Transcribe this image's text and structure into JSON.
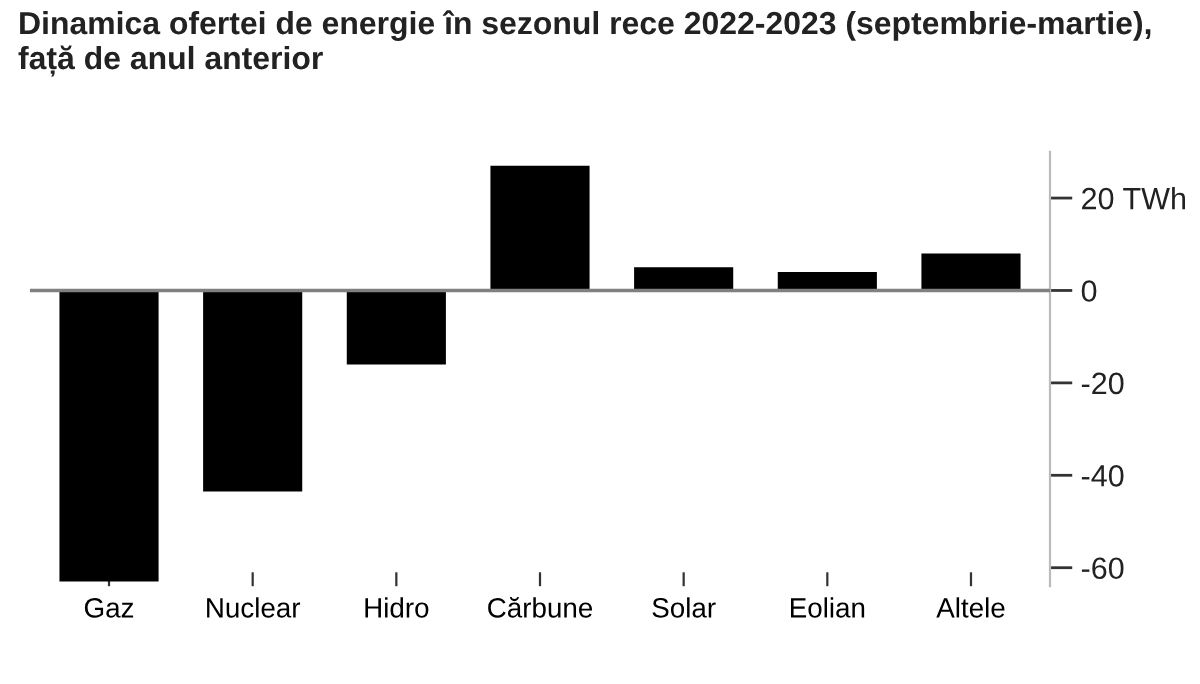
{
  "chart_data": {
    "type": "bar",
    "title": "Dinamica ofertei de energie în sezonul rece 2022-2023 (septembrie-martie),\nfață de anul anterior",
    "categories": [
      "Gaz",
      "Nuclear",
      "Hidro",
      "Cărbune",
      "Solar",
      "Eolian",
      "Altele"
    ],
    "values": [
      -63,
      -43.5,
      -16,
      27,
      5,
      4,
      8
    ],
    "color": "#000000",
    "ylim": [
      -64,
      30
    ],
    "yticks": [
      {
        "value": 20,
        "label": "20 TWh"
      },
      0,
      -20,
      -40,
      -60
    ],
    "ref_lines": [
      {
        "axis": "y",
        "value": 0,
        "label": null,
        "color": "#808080"
      }
    ],
    "grid": false
  }
}
